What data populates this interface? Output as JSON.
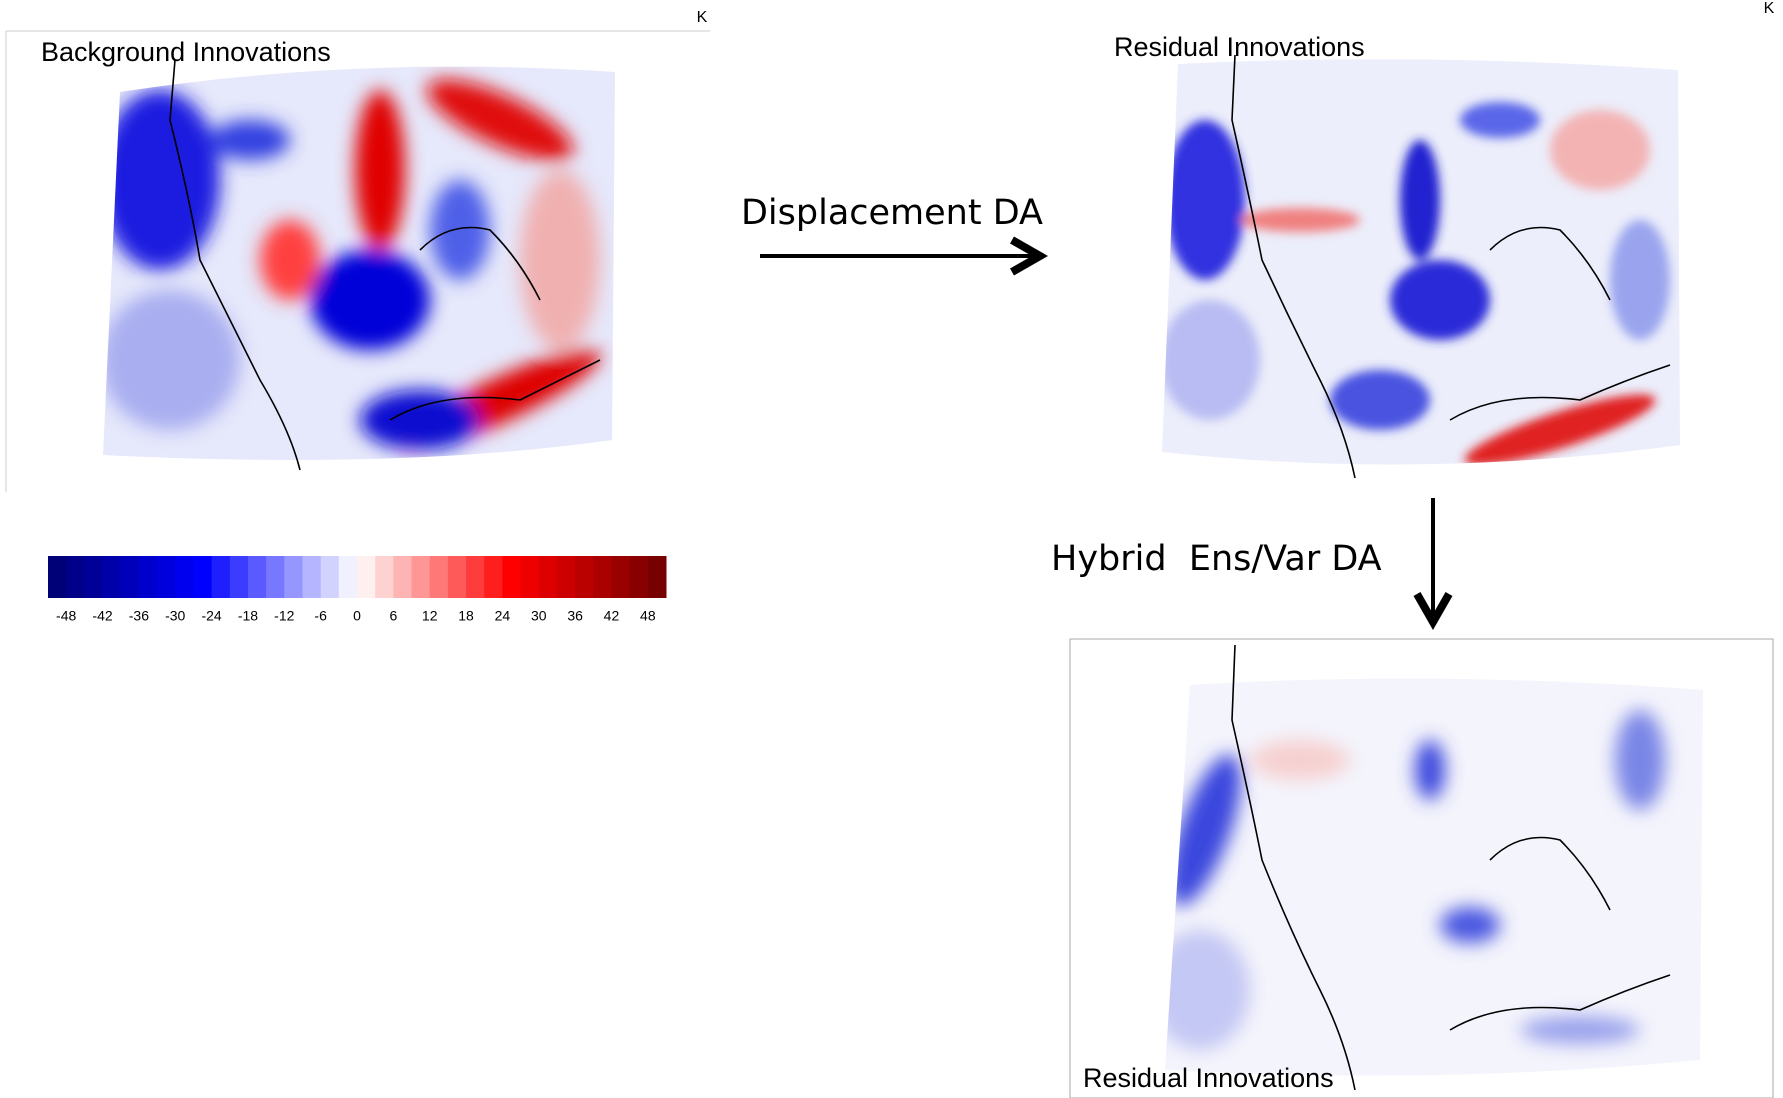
{
  "panels": [
    {
      "title": "Background Innovations",
      "unit": "K"
    },
    {
      "title": "Residual Innovations",
      "unit": "K"
    },
    {
      "title": "Residual Innovations"
    }
  ],
  "steps": [
    "Displacement DA",
    "Hybrid  Ens/Var DA"
  ],
  "colorbar": {
    "range": [
      -51,
      51
    ],
    "ticks": [
      -48,
      -42,
      -36,
      -30,
      -24,
      -18,
      -12,
      -6,
      0,
      6,
      12,
      18,
      24,
      30,
      36,
      42,
      48
    ],
    "colors": [
      "#00006e",
      "#0000ff",
      "#ffffff",
      "#ff0000",
      "#6e0000"
    ]
  }
}
